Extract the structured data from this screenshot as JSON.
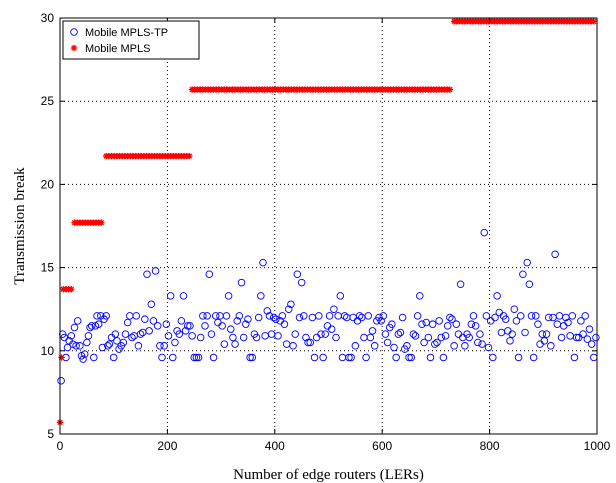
{
  "chart_data": {
    "type": "scatter",
    "title": "",
    "xlabel": "Number of edge routers (LERs)",
    "ylabel": "Transmission break",
    "xlim": [
      0,
      1000
    ],
    "ylim": [
      5,
      30
    ],
    "x_ticks": [
      0,
      200,
      400,
      600,
      800,
      1000
    ],
    "y_ticks": [
      5,
      10,
      15,
      20,
      25,
      30
    ],
    "grid": true,
    "legend_position": "top-left",
    "series": [
      {
        "name": "Mobile MPLS-TP",
        "marker": "circle",
        "color": "#0000ff",
        "points": [
          [
            2,
            8.2
          ],
          [
            5,
            11.0
          ],
          [
            8,
            10.8
          ],
          [
            11,
            9.6
          ],
          [
            14,
            10.2
          ],
          [
            17,
            10.6
          ],
          [
            21,
            10.9
          ],
          [
            24,
            10.4
          ],
          [
            27,
            11.4
          ],
          [
            30,
            10.3
          ],
          [
            33,
            11.8
          ],
          [
            37,
            10.3
          ],
          [
            40,
            9.7
          ],
          [
            43,
            9.5
          ],
          [
            46,
            9.8
          ],
          [
            50,
            10.5
          ],
          [
            53,
            10.9
          ],
          [
            56,
            11.4
          ],
          [
            59,
            11.5
          ],
          [
            63,
            9.6
          ],
          [
            66,
            11.5
          ],
          [
            69,
            12.1
          ],
          [
            72,
            11.6
          ],
          [
            76,
            12.1
          ],
          [
            79,
            10.2
          ],
          [
            82,
            11.9
          ],
          [
            86,
            12.1
          ],
          [
            89,
            10.3
          ],
          [
            92,
            10.4
          ],
          [
            96,
            10.8
          ],
          [
            100,
            9.6
          ],
          [
            103,
            11.0
          ],
          [
            106,
            10.6
          ],
          [
            110,
            10.1
          ],
          [
            114,
            10.3
          ],
          [
            118,
            10.5
          ],
          [
            122,
            11.0
          ],
          [
            126,
            11.7
          ],
          [
            130,
            12.1
          ],
          [
            134,
            10.8
          ],
          [
            138,
            10.9
          ],
          [
            142,
            12.1
          ],
          [
            146,
            10.3
          ],
          [
            150,
            11.0
          ],
          [
            154,
            11.1
          ],
          [
            158,
            11.9
          ],
          [
            162,
            14.6
          ],
          [
            166,
            11.2
          ],
          [
            170,
            12.8
          ],
          [
            174,
            11.8
          ],
          [
            178,
            14.8
          ],
          [
            182,
            11.5
          ],
          [
            186,
            10.3
          ],
          [
            190,
            9.6
          ],
          [
            194,
            10.3
          ],
          [
            198,
            11.6
          ],
          [
            202,
            10.9
          ],
          [
            206,
            13.3
          ],
          [
            210,
            9.6
          ],
          [
            214,
            10.5
          ],
          [
            218,
            11.2
          ],
          [
            222,
            11.0
          ],
          [
            226,
            11.8
          ],
          [
            230,
            13.3
          ],
          [
            234,
            11.2
          ],
          [
            238,
            11.5
          ],
          [
            242,
            11.5
          ],
          [
            246,
            10.9
          ],
          [
            250,
            9.6
          ],
          [
            254,
            9.6
          ],
          [
            258,
            9.6
          ],
          [
            262,
            10.8
          ],
          [
            266,
            12.1
          ],
          [
            270,
            11.5
          ],
          [
            274,
            12.1
          ],
          [
            278,
            14.6
          ],
          [
            282,
            11.0
          ],
          [
            286,
            9.6
          ],
          [
            290,
            12.1
          ],
          [
            294,
            11.7
          ],
          [
            298,
            12.1
          ],
          [
            302,
            11.5
          ],
          [
            306,
            10.4
          ],
          [
            310,
            12.1
          ],
          [
            314,
            13.3
          ],
          [
            318,
            11.3
          ],
          [
            322,
            10.8
          ],
          [
            326,
            10.4
          ],
          [
            330,
            11.8
          ],
          [
            334,
            12.1
          ],
          [
            338,
            14.1
          ],
          [
            342,
            10.8
          ],
          [
            346,
            11.6
          ],
          [
            350,
            11.9
          ],
          [
            354,
            9.6
          ],
          [
            358,
            9.6
          ],
          [
            362,
            11.0
          ],
          [
            366,
            10.8
          ],
          [
            370,
            12.0
          ],
          [
            374,
            13.3
          ],
          [
            378,
            15.3
          ],
          [
            382,
            10.9
          ],
          [
            386,
            12.4
          ],
          [
            390,
            12.1
          ],
          [
            394,
            11.0
          ],
          [
            398,
            12.0
          ],
          [
            402,
            11.9
          ],
          [
            406,
            10.9
          ],
          [
            410,
            11.8
          ],
          [
            414,
            12.1
          ],
          [
            418,
            11.6
          ],
          [
            422,
            10.4
          ],
          [
            426,
            12.5
          ],
          [
            430,
            12.8
          ],
          [
            434,
            10.3
          ],
          [
            438,
            11.0
          ],
          [
            442,
            14.6
          ],
          [
            446,
            12.0
          ],
          [
            450,
            14.1
          ],
          [
            454,
            12.1
          ],
          [
            458,
            10.8
          ],
          [
            462,
            10.5
          ],
          [
            466,
            10.5
          ],
          [
            470,
            12.0
          ],
          [
            474,
            9.6
          ],
          [
            478,
            10.8
          ],
          [
            482,
            12.1
          ],
          [
            486,
            11.0
          ],
          [
            490,
            9.6
          ],
          [
            494,
            11.0
          ],
          [
            498,
            11.5
          ],
          [
            502,
            12.1
          ],
          [
            506,
            11.3
          ],
          [
            510,
            12.5
          ],
          [
            514,
            10.8
          ],
          [
            518,
            12.1
          ],
          [
            522,
            13.3
          ],
          [
            526,
            9.6
          ],
          [
            530,
            12.1
          ],
          [
            534,
            12.0
          ],
          [
            538,
            9.6
          ],
          [
            542,
            9.6
          ],
          [
            546,
            12.0
          ],
          [
            550,
            10.3
          ],
          [
            554,
            11.8
          ],
          [
            558,
            12.1
          ],
          [
            562,
            12.0
          ],
          [
            566,
            10.8
          ],
          [
            570,
            9.6
          ],
          [
            574,
            12.1
          ],
          [
            578,
            10.8
          ],
          [
            582,
            11.2
          ],
          [
            586,
            10.3
          ],
          [
            590,
            11.8
          ],
          [
            594,
            12.0
          ],
          [
            598,
            11.8
          ],
          [
            602,
            12.1
          ],
          [
            606,
            11.0
          ],
          [
            610,
            10.5
          ],
          [
            614,
            11.4
          ],
          [
            618,
            11.6
          ],
          [
            622,
            10.2
          ],
          [
            626,
            9.6
          ],
          [
            630,
            11.0
          ],
          [
            634,
            11.1
          ],
          [
            638,
            12.0
          ],
          [
            642,
            10.1
          ],
          [
            646,
            10.3
          ],
          [
            650,
            9.6
          ],
          [
            654,
            9.6
          ],
          [
            658,
            11.0
          ],
          [
            662,
            10.9
          ],
          [
            666,
            12.1
          ],
          [
            670,
            13.3
          ],
          [
            674,
            11.6
          ],
          [
            678,
            10.5
          ],
          [
            682,
            11.7
          ],
          [
            686,
            10.8
          ],
          [
            690,
            9.6
          ],
          [
            694,
            11.6
          ],
          [
            698,
            10.4
          ],
          [
            702,
            10.5
          ],
          [
            706,
            11.8
          ],
          [
            710,
            10.8
          ],
          [
            714,
            9.6
          ],
          [
            718,
            10.9
          ],
          [
            722,
            11.5
          ],
          [
            726,
            12.0
          ],
          [
            730,
            11.9
          ],
          [
            734,
            10.3
          ],
          [
            738,
            11.6
          ],
          [
            742,
            11.0
          ],
          [
            746,
            14.0
          ],
          [
            750,
            10.8
          ],
          [
            754,
            10.3
          ],
          [
            758,
            11.0
          ],
          [
            762,
            10.8
          ],
          [
            766,
            11.6
          ],
          [
            770,
            12.1
          ],
          [
            774,
            11.5
          ],
          [
            778,
            10.5
          ],
          [
            782,
            11.0
          ],
          [
            786,
            10.4
          ],
          [
            790,
            17.1
          ],
          [
            794,
            12.1
          ],
          [
            798,
            10.2
          ],
          [
            802,
            11.8
          ],
          [
            806,
            9.6
          ],
          [
            810,
            12.0
          ],
          [
            814,
            13.3
          ],
          [
            818,
            12.3
          ],
          [
            822,
            11.1
          ],
          [
            826,
            12.1
          ],
          [
            830,
            11.9
          ],
          [
            834,
            11.2
          ],
          [
            838,
            10.6
          ],
          [
            842,
            11.0
          ],
          [
            846,
            12.5
          ],
          [
            850,
            11.8
          ],
          [
            854,
            9.6
          ],
          [
            858,
            12.1
          ],
          [
            862,
            14.6
          ],
          [
            866,
            11.1
          ],
          [
            870,
            15.3
          ],
          [
            874,
            14.0
          ],
          [
            878,
            12.1
          ],
          [
            882,
            9.6
          ],
          [
            886,
            12.1
          ],
          [
            890,
            11.6
          ],
          [
            894,
            10.4
          ],
          [
            898,
            11.0
          ],
          [
            902,
            10.6
          ],
          [
            906,
            11.0
          ],
          [
            910,
            12.0
          ],
          [
            914,
            10.3
          ],
          [
            918,
            12.0
          ],
          [
            922,
            15.8
          ],
          [
            926,
            11.6
          ],
          [
            930,
            12.1
          ],
          [
            934,
            10.8
          ],
          [
            938,
            11.5
          ],
          [
            942,
            12.0
          ],
          [
            946,
            11.7
          ],
          [
            950,
            10.9
          ],
          [
            954,
            12.1
          ],
          [
            958,
            9.6
          ],
          [
            962,
            10.8
          ],
          [
            966,
            10.8
          ],
          [
            970,
            11.8
          ],
          [
            974,
            11.0
          ],
          [
            978,
            12.1
          ],
          [
            982,
            10.7
          ],
          [
            986,
            11.3
          ],
          [
            990,
            10.4
          ],
          [
            994,
            9.6
          ],
          [
            998,
            10.8
          ]
        ]
      },
      {
        "name": "Mobile MPLS",
        "marker": "asterisk",
        "color": "#ff0000",
        "segments": [
          {
            "x_start": 0,
            "x_end": 0,
            "y": 5.7
          },
          {
            "x_start": 3,
            "x_end": 3,
            "y": 9.6
          },
          {
            "x_start": 6,
            "x_end": 22,
            "y": 13.7
          },
          {
            "x_start": 27,
            "x_end": 81,
            "y": 17.7
          },
          {
            "x_start": 86,
            "x_end": 241,
            "y": 21.7
          },
          {
            "x_start": 246,
            "x_end": 729,
            "y": 25.7
          },
          {
            "x_start": 734,
            "x_end": 998,
            "y": 29.8
          }
        ],
        "x_step": 5
      }
    ]
  }
}
